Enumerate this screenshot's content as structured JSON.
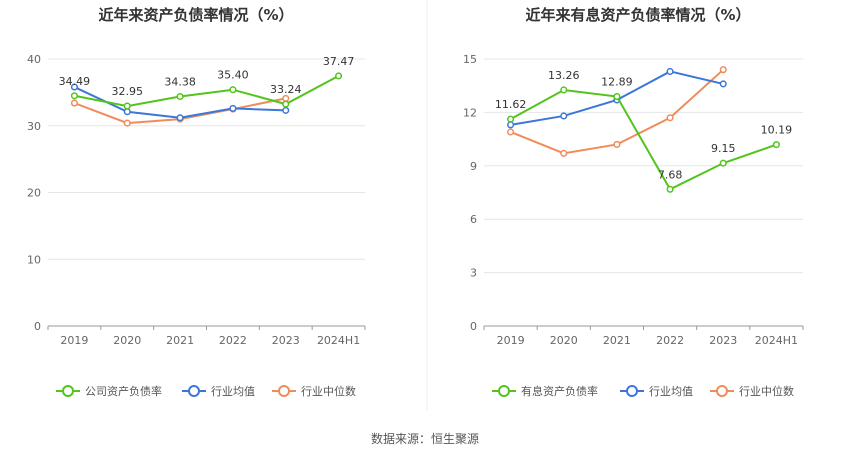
{
  "source_text": "数据来源：恒生聚源",
  "chart_data": [
    {
      "type": "line",
      "title": "近年来资产负债率情况（%）",
      "categories": [
        "2019",
        "2020",
        "2021",
        "2022",
        "2023",
        "2024H1"
      ],
      "ylim": [
        0,
        40
      ],
      "yticks": [
        0,
        10,
        20,
        30,
        40
      ],
      "grid": true,
      "legend_position": "bottom",
      "series": [
        {
          "name": "公司资产负债率",
          "color": "#52c41a",
          "values": [
            34.49,
            32.95,
            34.38,
            35.4,
            33.24,
            37.47
          ],
          "show_labels": true
        },
        {
          "name": "行业均值",
          "color": "#3b77d8",
          "values": [
            35.8,
            32.1,
            31.2,
            32.6,
            32.3,
            null
          ],
          "show_labels": false
        },
        {
          "name": "行业中位数",
          "color": "#f08c5a",
          "values": [
            33.4,
            30.4,
            31.0,
            32.5,
            34.1,
            null
          ],
          "show_labels": false
        }
      ]
    },
    {
      "type": "line",
      "title": "近年来有息资产负债率情况（%）",
      "categories": [
        "2019",
        "2020",
        "2021",
        "2022",
        "2023",
        "2024H1"
      ],
      "ylim": [
        0,
        15
      ],
      "yticks": [
        0,
        3,
        6,
        9,
        12,
        15
      ],
      "grid": true,
      "legend_position": "bottom",
      "series": [
        {
          "name": "有息资产负债率",
          "color": "#52c41a",
          "values": [
            11.62,
            13.26,
            12.89,
            7.68,
            9.15,
            10.19
          ],
          "show_labels": true
        },
        {
          "name": "行业均值",
          "color": "#3b77d8",
          "values": [
            11.3,
            11.8,
            12.7,
            14.3,
            13.6,
            null
          ],
          "show_labels": false
        },
        {
          "name": "行业中位数",
          "color": "#f08c5a",
          "values": [
            10.9,
            9.7,
            10.2,
            11.7,
            14.4,
            null
          ],
          "show_labels": false
        }
      ]
    }
  ]
}
